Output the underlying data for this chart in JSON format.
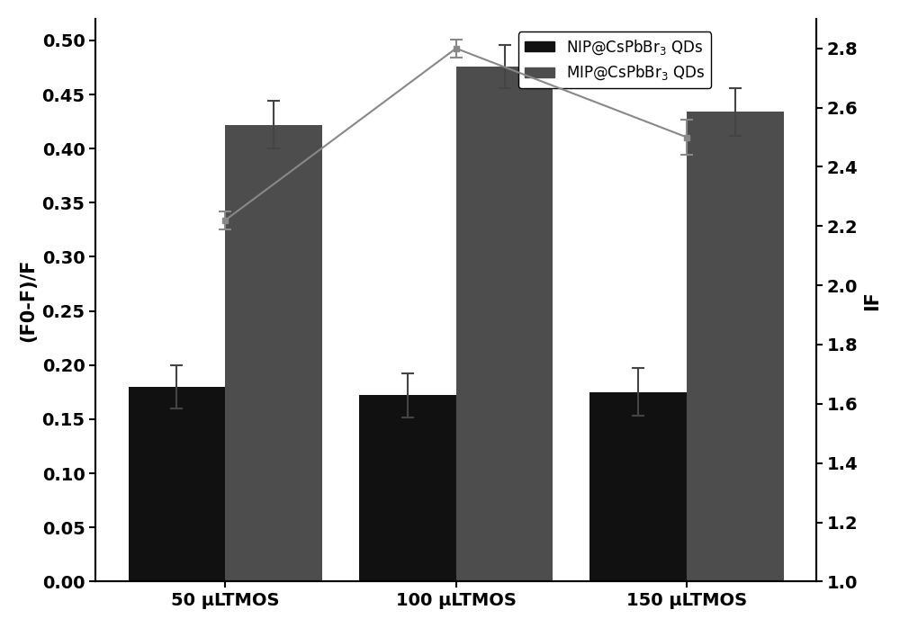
{
  "categories": [
    "50 μLTMOS",
    "100 μLTMOS",
    "150 μLTMOS"
  ],
  "nip_values": [
    0.18,
    0.172,
    0.175
  ],
  "mip_values": [
    0.422,
    0.476,
    0.434
  ],
  "nip_errors": [
    0.02,
    0.02,
    0.022
  ],
  "mip_errors": [
    0.022,
    0.02,
    0.022
  ],
  "if_values": [
    2.22,
    2.8,
    2.5
  ],
  "if_errors": [
    0.03,
    0.03,
    0.06
  ],
  "nip_color": "#111111",
  "mip_color": "#4d4d4d",
  "line_color": "#888888",
  "ylabel_left": "(F0-F)/F",
  "ylabel_right": "IF",
  "ylim_left": [
    0.0,
    0.52
  ],
  "ylim_right": [
    1.0,
    2.9
  ],
  "legend_nip": "NIP@CsPbBr$_3$ QDs",
  "legend_mip": "MIP@CsPbBr$_3$ QDs",
  "bar_width": 0.42,
  "background_color": "#ffffff",
  "label_fontsize": 15,
  "tick_fontsize": 14
}
